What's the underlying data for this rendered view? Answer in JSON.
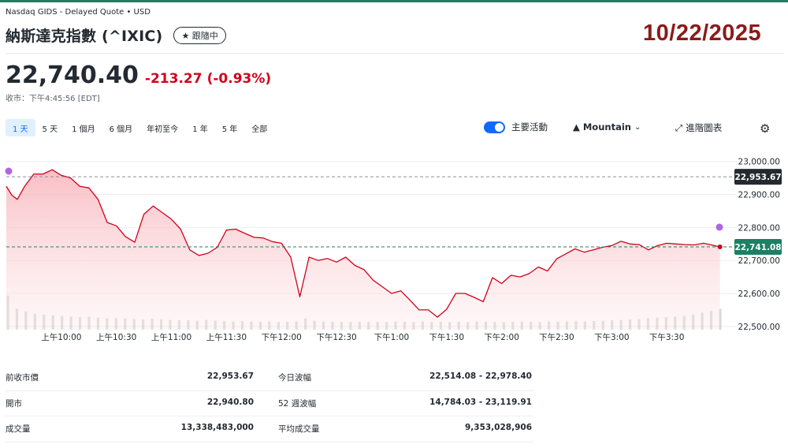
{
  "header": {
    "source": "Nasdaq GIDS - Delayed Quote • USD",
    "title": "納斯達克指數 (^IXIC)",
    "follow_label": "★ 跟隨中",
    "date_stamp": "10/22/2025"
  },
  "quote": {
    "price": "22,740.40",
    "change": "-213.27",
    "change_pct": "(-0.93%)",
    "close_time": "收市：下午4:45:56 [EDT]"
  },
  "ranges": [
    "1 天",
    "5 天",
    "1 個月",
    "6 個月",
    "年初至今",
    "1 年",
    "5 年",
    "全部"
  ],
  "active_range": "1 天",
  "controls": {
    "key_events_label": "主要活動",
    "key_events_on": true,
    "chart_type": "Mountain",
    "advanced_label": "進階圖表"
  },
  "colors": {
    "down": "#d0021b",
    "accent": "#0f69ff",
    "current_price_tag": "#1e7f63",
    "prev_close_tag": "#232a31",
    "brand_line": "#1e7f63",
    "event_marker": "#b066e0"
  },
  "chart_data": {
    "type": "area",
    "x_label_ticks": [
      "上午10:00",
      "上午10:30",
      "上午11:00",
      "上午11:30",
      "下午12:00",
      "下午12:30",
      "下午1:00",
      "下午1:30",
      "下午2:00",
      "下午2:30",
      "下午3:00",
      "下午3:30"
    ],
    "y_ticks": [
      "23,000.00",
      "22,900.00",
      "22,800.00",
      "22,700.00",
      "22,600.00",
      "22,500.00"
    ],
    "ylim": [
      22490,
      23040
    ],
    "prev_close": 22953.67,
    "prev_close_label": "22,953.67",
    "last_price": 22741.08,
    "last_price_label": "22,741.08",
    "x_unit": "minutes after 09:30 ET",
    "x": [
      0,
      3,
      6,
      10,
      15,
      20,
      25,
      30,
      35,
      40,
      45,
      50,
      55,
      60,
      65,
      70,
      75,
      80,
      85,
      90,
      95,
      100,
      105,
      110,
      115,
      120,
      125,
      130,
      135,
      140,
      145,
      150,
      155,
      160,
      165,
      170,
      175,
      180,
      185,
      190,
      195,
      200,
      205,
      210,
      215,
      220,
      225,
      230,
      235,
      240,
      245,
      250,
      255,
      260,
      265,
      270,
      275,
      280,
      285,
      290,
      295,
      300,
      305,
      310,
      315,
      320,
      325,
      330,
      335,
      340,
      345,
      350,
      355,
      360,
      365,
      370,
      375,
      380,
      385,
      389
    ],
    "y": [
      22925,
      22898,
      22885,
      22925,
      22962,
      22962,
      22975,
      22958,
      22950,
      22925,
      22920,
      22885,
      22815,
      22805,
      22772,
      22755,
      22840,
      22865,
      22845,
      22825,
      22795,
      22732,
      22715,
      22722,
      22740,
      22792,
      22795,
      22782,
      22770,
      22768,
      22757,
      22752,
      22710,
      22590,
      22710,
      22700,
      22706,
      22695,
      22710,
      22685,
      22672,
      22640,
      22620,
      22600,
      22608,
      22580,
      22550,
      22550,
      22528,
      22552,
      22600,
      22600,
      22588,
      22575,
      22648,
      22630,
      22655,
      22650,
      22660,
      22680,
      22668,
      22705,
      22720,
      22735,
      22725,
      22732,
      22740,
      22745,
      22758,
      22750,
      22748,
      22732,
      22745,
      22752,
      22750,
      22748,
      22747,
      22752,
      22746,
      22741
    ],
    "volume_unit": "relative",
    "volume": [
      0.9,
      0.55,
      0.48,
      0.42,
      0.4,
      0.38,
      0.36,
      0.35,
      0.33,
      0.34,
      0.32,
      0.3,
      0.31,
      0.3,
      0.28,
      0.27,
      0.29,
      0.27,
      0.26,
      0.25,
      0.25,
      0.24,
      0.26,
      0.24,
      0.23,
      0.22,
      0.23,
      0.22,
      0.21,
      0.22,
      0.2,
      0.21,
      0.22,
      0.3,
      0.24,
      0.22,
      0.21,
      0.2,
      0.2,
      0.21,
      0.2,
      0.21,
      0.2,
      0.22,
      0.21,
      0.2,
      0.22,
      0.2,
      0.21,
      0.2,
      0.21,
      0.2,
      0.22,
      0.21,
      0.2,
      0.2,
      0.21,
      0.22,
      0.21,
      0.2,
      0.22,
      0.21,
      0.22,
      0.23,
      0.22,
      0.23,
      0.24,
      0.25,
      0.26,
      0.27,
      0.28,
      0.3,
      0.32,
      0.33,
      0.35,
      0.36,
      0.4,
      0.45,
      0.5,
      0.55
    ]
  },
  "stats": [
    [
      {
        "label": "前收市價",
        "value": "22,953.67"
      },
      {
        "label": "今日波幅",
        "value": "22,514.08 - 22,978.40"
      }
    ],
    [
      {
        "label": "開市",
        "value": "22,940.80"
      },
      {
        "label": "52 週波幅",
        "value": "14,784.03 - 23,119.91"
      }
    ],
    [
      {
        "label": "成交量",
        "value": "13,338,483,000"
      },
      {
        "label": "平均成交量",
        "value": "9,353,028,906"
      }
    ]
  ]
}
